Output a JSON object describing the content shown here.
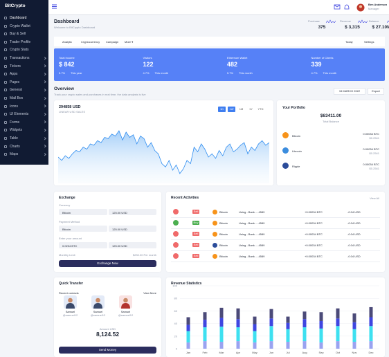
{
  "sidebar": {
    "logo": "BitCrypto",
    "menu": [
      "Dashboard",
      "Crypto Wallet",
      "Buy & Sell",
      "Trader Profile",
      "Crypto Stats",
      "Transactions",
      "Tickers",
      "Apps",
      "Pages",
      "General",
      "Mail Box",
      "Icons",
      "UI Elements",
      "Forms",
      "Widgets",
      "Table",
      "Charts",
      "Maps"
    ]
  },
  "header": {
    "user_name": "Ben Anderson",
    "user_role": "Manager"
  },
  "page": {
    "title": "Dashboard",
    "subtitle": "Welcome to BitCrypto Dashboard",
    "stats": [
      {
        "label": "Purchase",
        "value": "375"
      },
      {
        "label": "Revenue",
        "value": "$ 3,315"
      },
      {
        "label": "Balance",
        "value": "$ 27.10M"
      }
    ]
  },
  "tabs": [
    "Analytic",
    "Cryptocurrency",
    "Campaign",
    "More ▾"
  ],
  "tabs_right": [
    "Today",
    "Settings"
  ],
  "banner": [
    {
      "label": "Total Income",
      "value": "$ 842",
      "change": "5.7%",
      "period": "This year"
    },
    {
      "label": "Visitors",
      "value": "122",
      "change": "4.7%",
      "period": "This month"
    },
    {
      "label": "Ethereum Wallet",
      "value": "482",
      "change": "5.7%",
      "period": "This month"
    },
    {
      "label": "Number of Clients",
      "value": "339",
      "change": "4.7%",
      "period": "This month"
    }
  ],
  "overview": {
    "title": "Overview",
    "subtitle": "Track your crypto sales and purchases in real time, the data analysis is live",
    "date": "15 MARCH 2022",
    "export": "Export"
  },
  "portfolio": {
    "title": "Your Portfolio",
    "balance": "$63411.00",
    "balance_label": "Total Balance",
    "coins": [
      {
        "name": "Bitcoin",
        "amount": "0.00034 BTC",
        "usd": "$0.2541"
      },
      {
        "name": "Litecoin",
        "amount": "0.00034 BTC",
        "usd": "$0.2541"
      },
      {
        "name": "Ripple",
        "amount": "0.00034 BTC",
        "usd": "$0.2541"
      }
    ]
  },
  "exchange": {
    "title": "Exchange",
    "fields": [
      {
        "label": "Currency",
        "left": "Bitcoin",
        "right": "125.00 USD"
      },
      {
        "label": "Payment Method",
        "left": "Bitcoin",
        "right": "125.00 USD"
      },
      {
        "label": "Enter your amount",
        "left": "0.0234 BTC",
        "right": "125.00 USD"
      }
    ],
    "limit_label": "Monthly Limit",
    "limit_value": "$230.00 Per month",
    "button": "Exchange Now"
  },
  "activities": {
    "title": "Recent Activities",
    "view_all": "View All",
    "rows": [
      {
        "badge": "Sell",
        "coin": "Bitcoin",
        "method": "Using - Bank ....4589",
        "amount": "+0.00034 BTC",
        "usd": "-0.04 USD"
      },
      {
        "badge": "Buy",
        "coin": "Bitcoin",
        "method": "Using - Bank ....4589",
        "amount": "+0.00034 BTC",
        "usd": "-0.04 USD"
      },
      {
        "badge": "Sell",
        "coin": "Bitcoin",
        "method": "Using - Bank ....4589",
        "amount": "+0.00034 BTC",
        "usd": "-0.04 USD"
      },
      {
        "badge": "Sell",
        "coin": "Bitcoin",
        "method": "Using - Bank ....4589",
        "amount": "+0.00034 BTC",
        "usd": "-0.04 USD"
      },
      {
        "badge": "Sell",
        "coin": "Bitcoin",
        "method": "Using - Bank ....4589",
        "amount": "+0.00034 BTC",
        "usd": "-0.04 USD"
      }
    ]
  },
  "transfer": {
    "title": "Quick Transfer",
    "recent": "Recent contacts",
    "view_more": "View More",
    "contacts": [
      {
        "name": "Samuel",
        "handle": "@samuel12"
      },
      {
        "name": "Samuel",
        "handle": "@samuel12"
      },
      {
        "name": "Samuel",
        "handle": "@samuel12"
      }
    ],
    "amount_label": "Amount USD",
    "amount": "8,124.52",
    "button": "Send Money"
  },
  "chart_data": [
    {
      "type": "area",
      "title": "294858 USD",
      "subtitle": "LINEAR USD SALES",
      "ranges": [
        "1D",
        "1W",
        "1M",
        "1Y",
        "YTD"
      ],
      "color": "#2d8cf0",
      "ylim": [
        0,
        100
      ],
      "values": [
        40,
        35,
        42,
        38,
        45,
        50,
        48,
        55,
        52,
        60,
        58,
        65,
        62,
        70,
        68,
        75,
        72,
        80,
        66,
        78,
        70,
        74,
        60,
        72,
        68,
        55,
        62,
        50,
        45,
        30,
        25,
        35,
        20,
        28,
        15,
        22,
        35,
        30,
        55,
        48,
        60,
        52,
        40,
        45,
        38,
        50,
        42,
        55,
        60,
        48,
        52,
        58,
        62,
        45,
        55,
        50,
        60,
        65,
        58,
        62
      ]
    },
    {
      "type": "stacked_bar",
      "title": "Revenue Statistics",
      "categories": [
        "Jan",
        "Feb",
        "Mar",
        "Apr",
        "May",
        "Jun",
        "Jul",
        "Aug",
        "Sep",
        "Oct",
        "Nov",
        "Dec"
      ],
      "ylim": [
        0,
        100
      ],
      "yticks": [
        0,
        20,
        40,
        60,
        80,
        100
      ],
      "grid": true,
      "series": [
        {
          "color": "#9aa3f0",
          "values": [
            10,
            12,
            11,
            12,
            10,
            12,
            11,
            12,
            10,
            12,
            11,
            12
          ]
        },
        {
          "color": "#3ee0f0",
          "values": [
            18,
            22,
            24,
            22,
            18,
            24,
            20,
            22,
            22,
            24,
            20,
            24
          ]
        },
        {
          "color": "#3f46e0",
          "values": [
            10,
            12,
            14,
            13,
            11,
            12,
            10,
            13,
            12,
            12,
            11,
            14
          ]
        },
        {
          "color": "#4b4a78",
          "values": [
            12,
            12,
            16,
            17,
            12,
            15,
            10,
            12,
            14,
            16,
            14,
            16
          ]
        }
      ]
    }
  ]
}
